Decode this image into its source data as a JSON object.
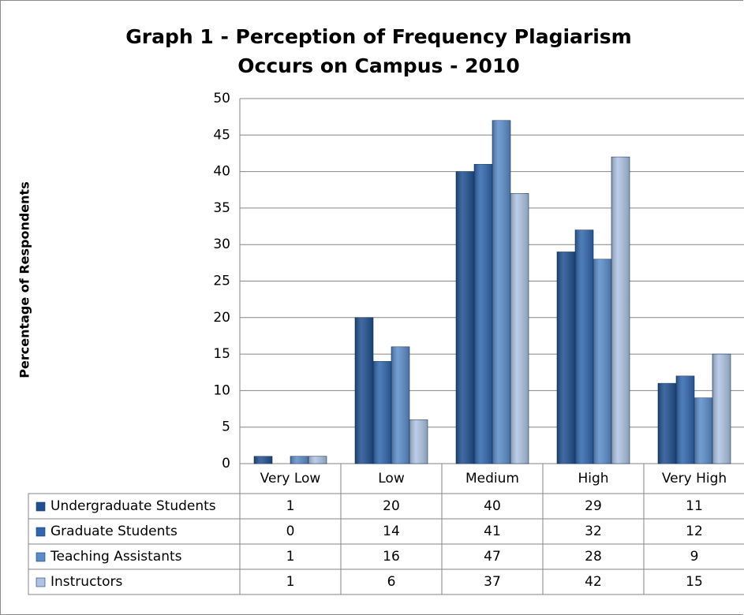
{
  "chart_data": {
    "type": "bar",
    "title": "Graph 1 - Perception of Frequency Plagiarism Occurs on Campus - 2010",
    "y_label": "Percentage of Respondents",
    "categories": [
      "Very Low",
      "Low",
      "Medium",
      "High",
      "Very High"
    ],
    "series": [
      {
        "name": "Undergraduate Students",
        "color": "#1f4f8f",
        "values": [
          1,
          20,
          40,
          29,
          11
        ]
      },
      {
        "name": "Graduate Students",
        "color": "#2f66ad",
        "values": [
          0,
          14,
          41,
          32,
          12
        ]
      },
      {
        "name": "Teaching Assistants",
        "color": "#5b8cc9",
        "values": [
          1,
          16,
          47,
          28,
          9
        ]
      },
      {
        "name": "Instructors",
        "color": "#aec3e3",
        "values": [
          1,
          6,
          37,
          42,
          15
        ]
      }
    ],
    "ylim": [
      0,
      50
    ],
    "yticks": [
      0,
      5,
      10,
      15,
      20,
      25,
      30,
      35,
      40,
      45,
      50
    ],
    "grid": true,
    "data_table": true
  }
}
